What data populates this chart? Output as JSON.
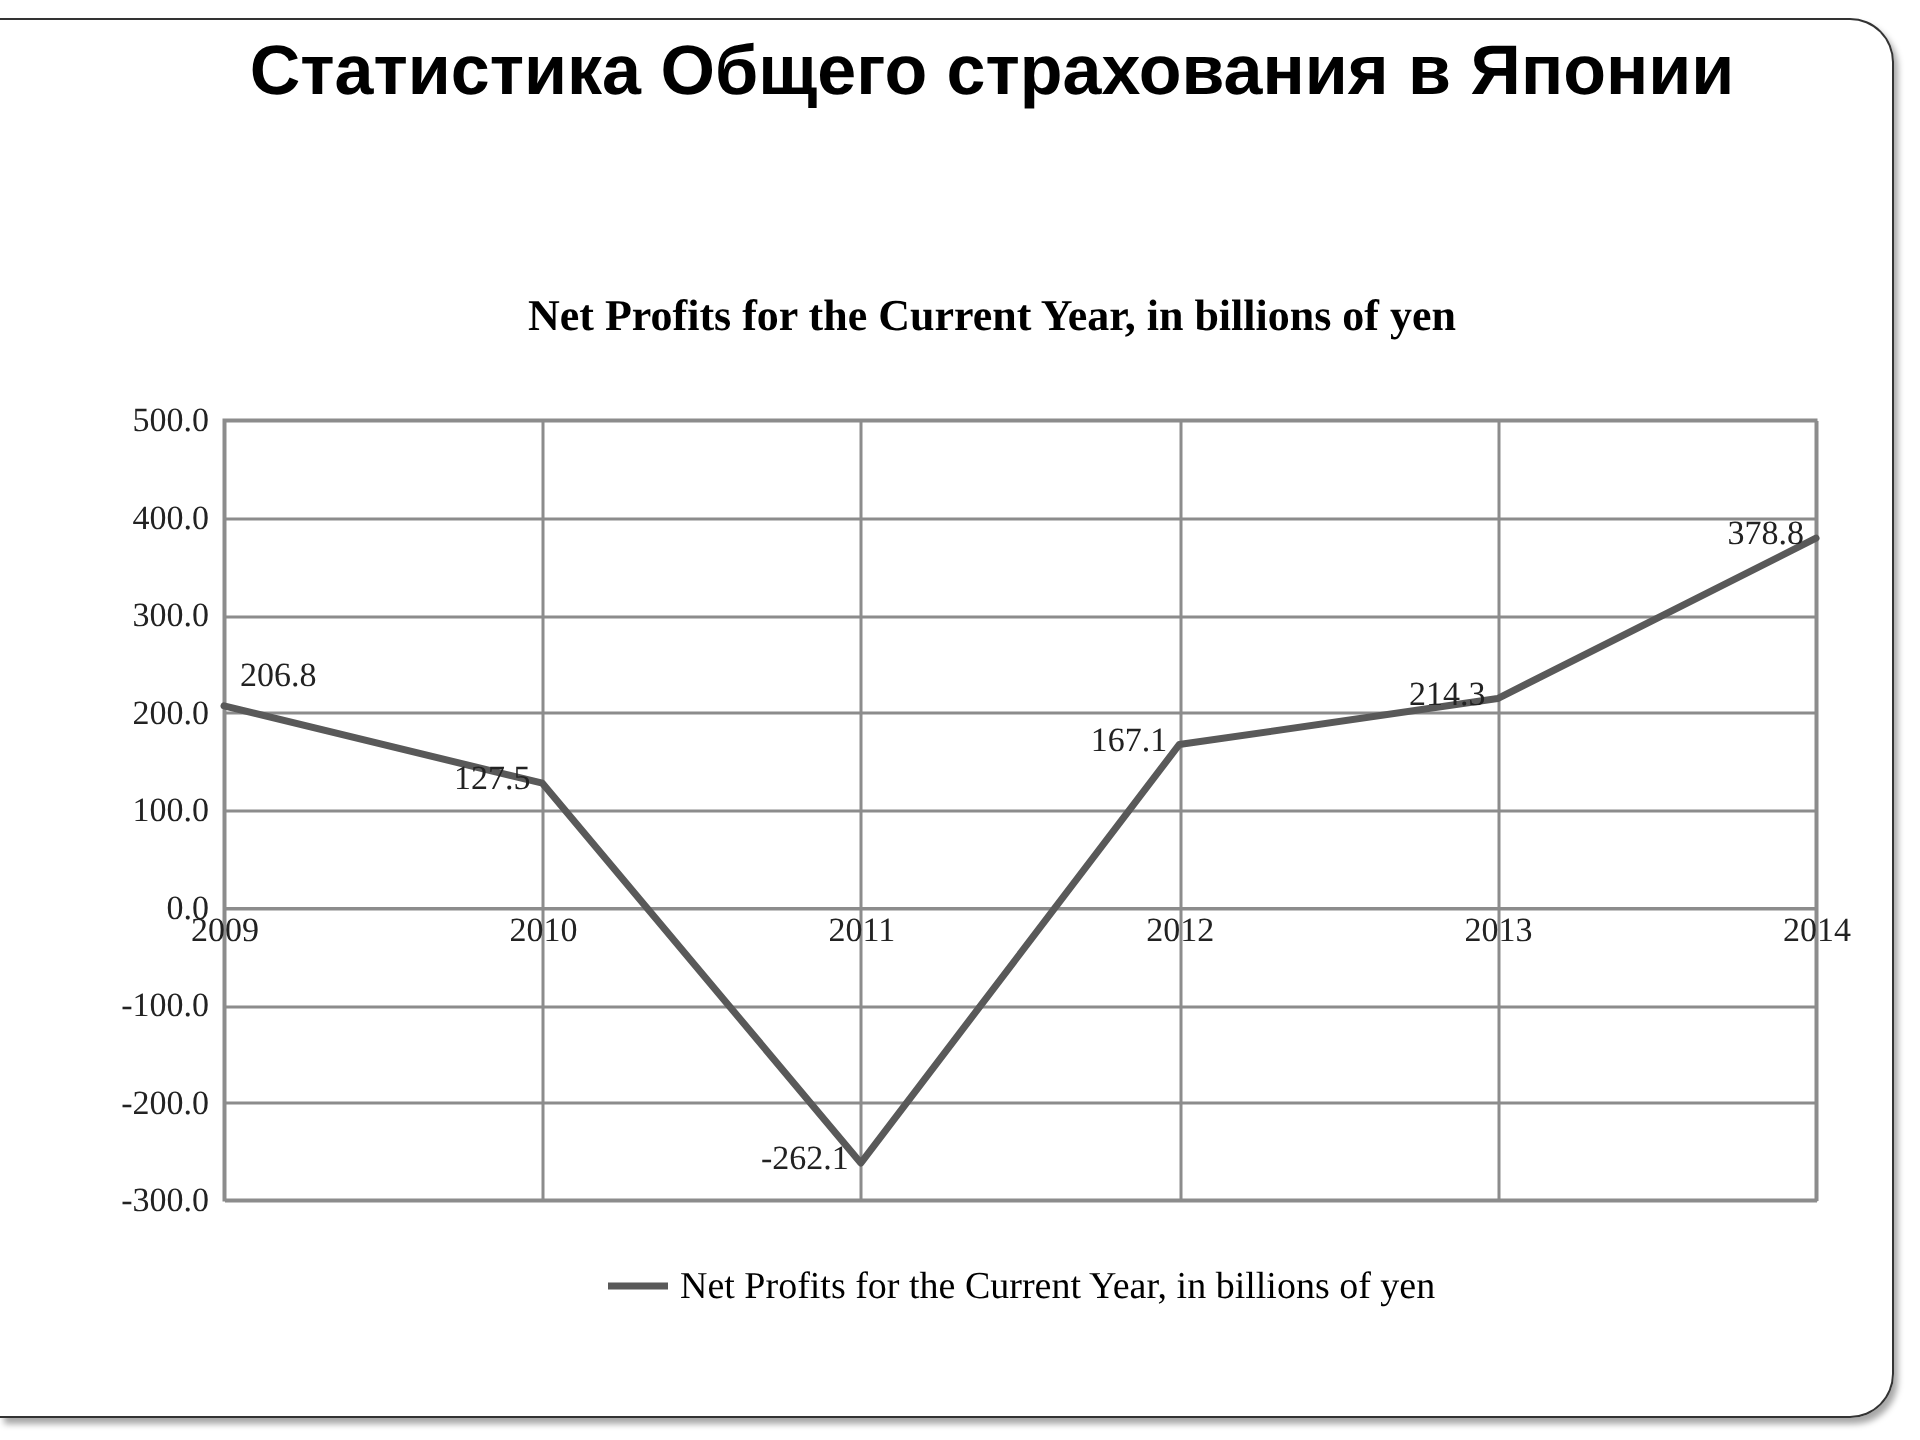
{
  "chart_data": {
    "type": "line",
    "title": "Статистика Общего страхования в Японии",
    "subtitle": "Net Profits for the Current Year, in billions of yen",
    "categories": [
      "2009",
      "2010",
      "2011",
      "2012",
      "2013",
      "2014"
    ],
    "series": [
      {
        "name": "Net Profits for the Current Year, in billions of yen",
        "color": "#595959",
        "values": [
          206.8,
          127.5,
          -262.1,
          167.1,
          214.3,
          378.8
        ]
      }
    ],
    "ylim": [
      -300,
      500
    ],
    "yticks": [
      {
        "value": -300,
        "label": "-300.0"
      },
      {
        "value": -200,
        "label": "-200.0"
      },
      {
        "value": -100,
        "label": "-100.0"
      },
      {
        "value": 0,
        "label": "0.0"
      },
      {
        "value": 100,
        "label": "100.0"
      },
      {
        "value": 200,
        "label": "200.0"
      },
      {
        "value": 300,
        "label": "300.0"
      },
      {
        "value": 400,
        "label": "400.0"
      },
      {
        "value": 500,
        "label": "500.0"
      }
    ],
    "grid": true,
    "legend": "bottom",
    "line_style": "solid",
    "data_labels": true
  }
}
